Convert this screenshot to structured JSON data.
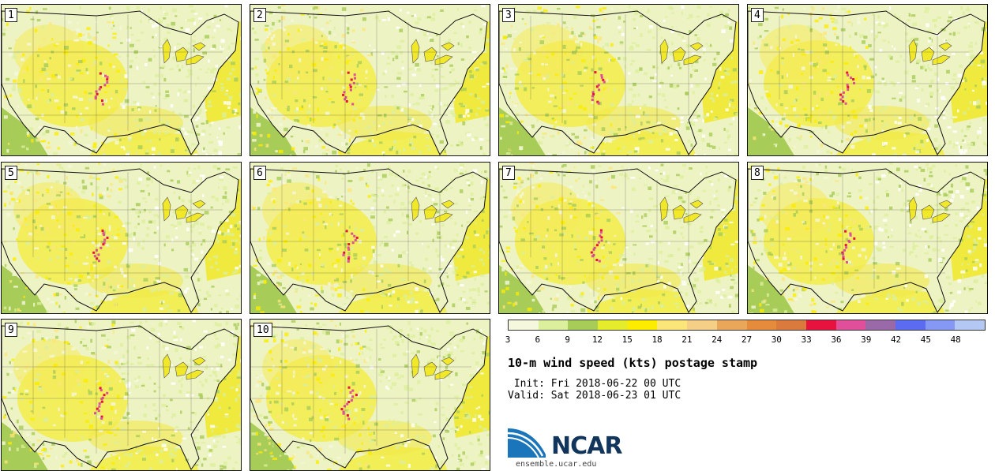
{
  "panels": [
    {
      "label": "1"
    },
    {
      "label": "2"
    },
    {
      "label": "3"
    },
    {
      "label": "4"
    },
    {
      "label": "5"
    },
    {
      "label": "6"
    },
    {
      "label": "7"
    },
    {
      "label": "8"
    },
    {
      "label": "9"
    },
    {
      "label": "10"
    }
  ],
  "colorbar": {
    "colors": [
      "#f5f8dc",
      "#dcef9c",
      "#a8cc58",
      "#e4ec2c",
      "#fbec00",
      "#fbe67a",
      "#f5cf86",
      "#e9a75a",
      "#e58b3c",
      "#da7a3c",
      "#e8123e",
      "#e0509a",
      "#9a6aa8",
      "#5c6cf0",
      "#8498f4",
      "#b4c8f4"
    ],
    "tick_labels": [
      "3",
      "6",
      "9",
      "12",
      "15",
      "18",
      "21",
      "24",
      "27",
      "30",
      "33",
      "36",
      "39",
      "42",
      "45",
      "48"
    ]
  },
  "title": "10-m wind speed (kts) postage stamp",
  "init": " Init: Fri 2018-06-22 00 UTC",
  "valid": "Valid: Sat 2018-06-23 01 UTC",
  "logo": {
    "text": "NCAR",
    "site": "ensemble.ucar.edu"
  }
}
